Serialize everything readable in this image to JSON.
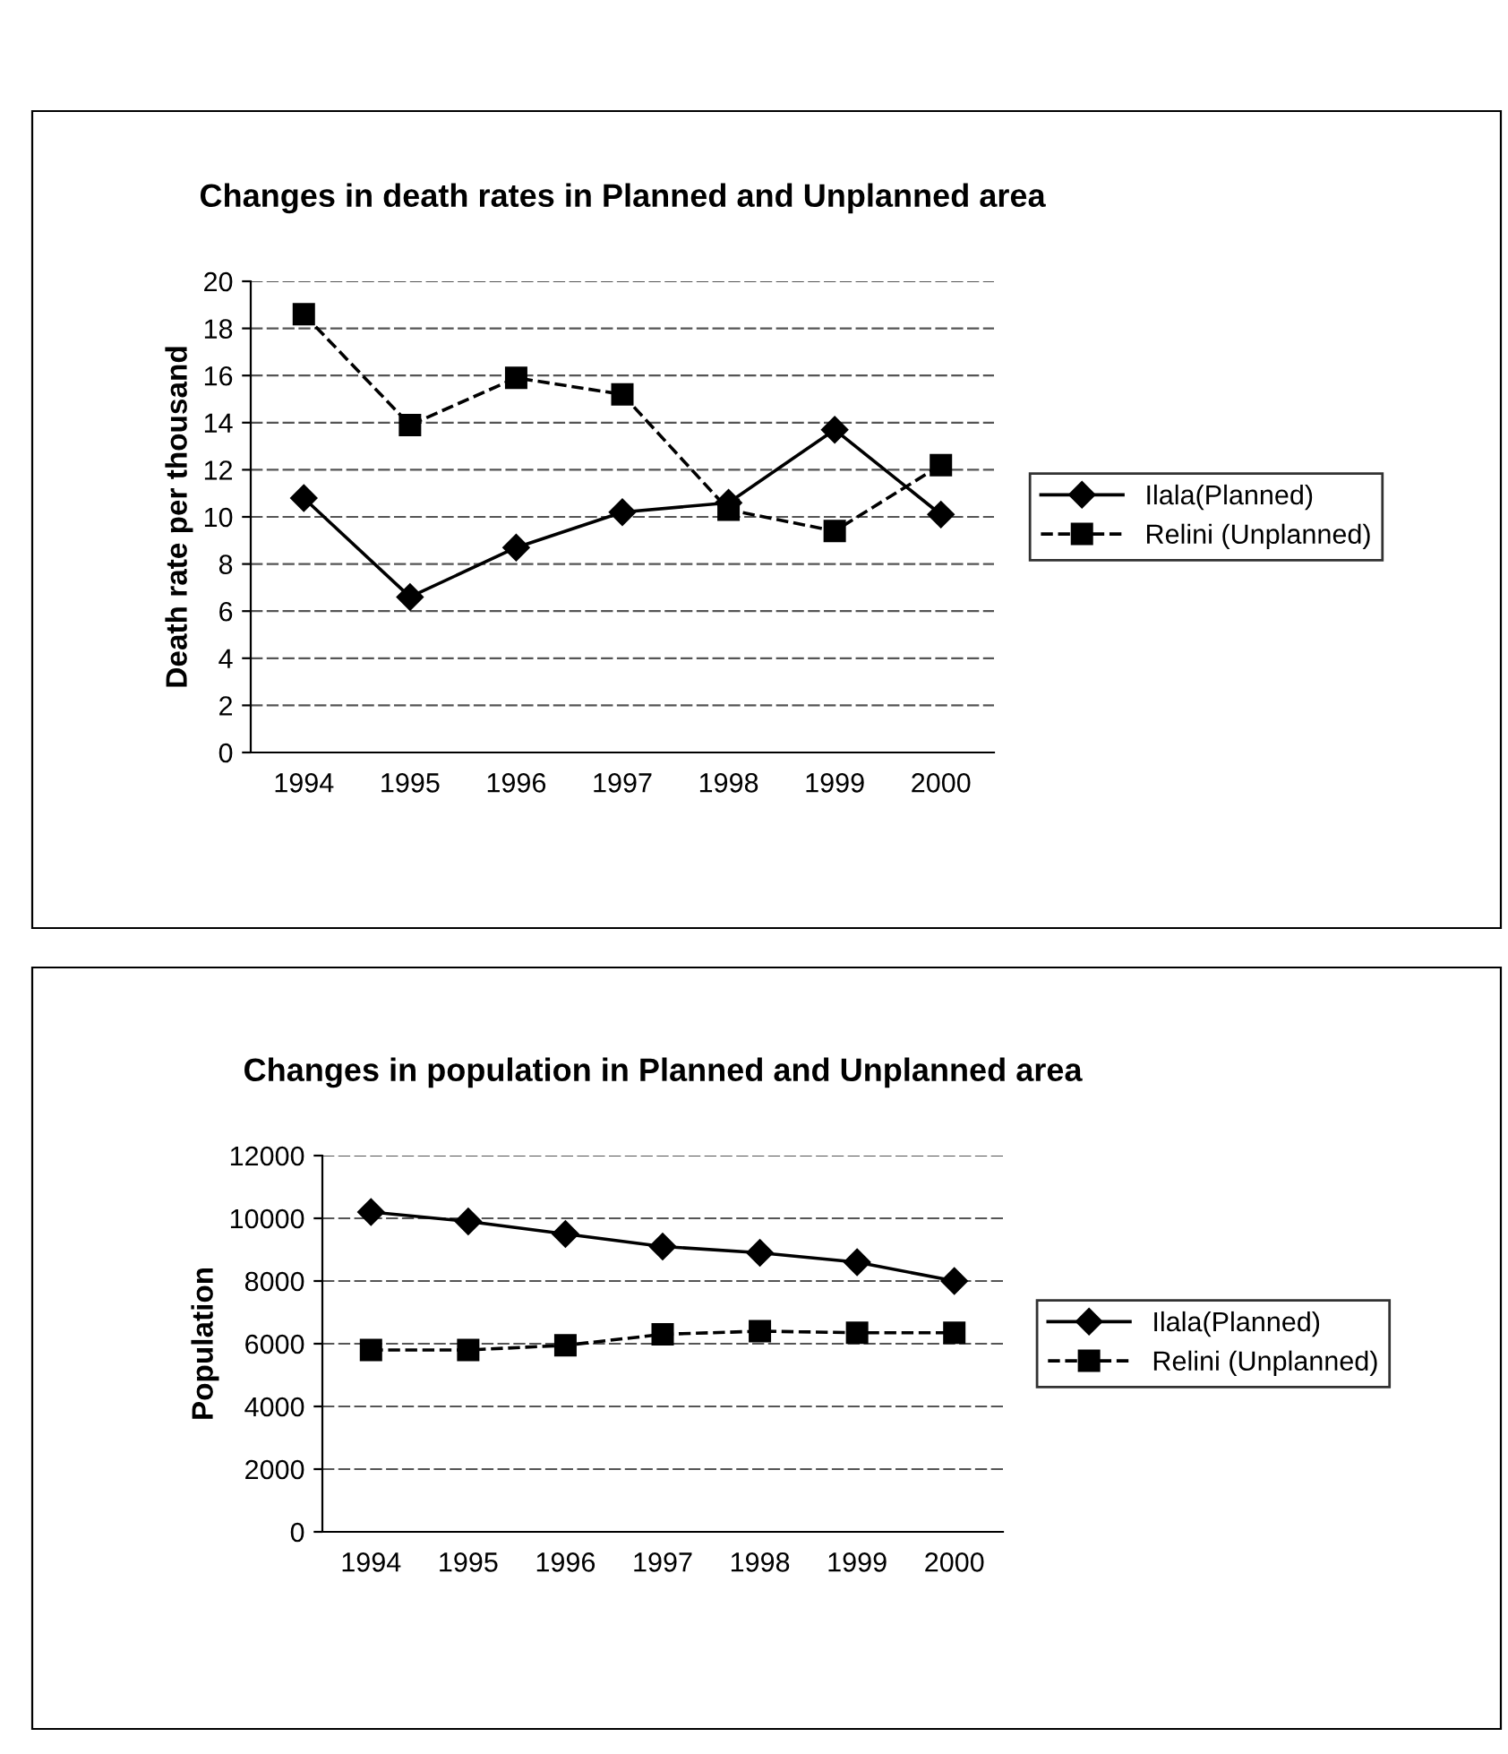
{
  "chart_data": [
    {
      "type": "line",
      "title": "Changes in death rates in Planned and Unplanned area",
      "ylabel": "Death rate per thousand",
      "categories": [
        "1994",
        "1995",
        "1996",
        "1997",
        "1998",
        "1999",
        "2000"
      ],
      "series": [
        {
          "name": "Ilala(Planned)",
          "color": "#000000",
          "marker": "diamond",
          "line_style": "solid",
          "values": [
            10.8,
            6.6,
            8.7,
            10.2,
            10.6,
            13.7,
            10.1
          ]
        },
        {
          "name": "Relini (Unplanned)",
          "color": "#000000",
          "marker": "square",
          "line_style": "dashed",
          "values": [
            18.6,
            13.9,
            15.9,
            15.2,
            10.3,
            9.4,
            12.2
          ]
        }
      ],
      "ylim": [
        0,
        20
      ],
      "yticks": [
        0,
        2,
        4,
        6,
        8,
        10,
        12,
        14,
        16,
        18,
        20
      ],
      "grid": "y",
      "legend": "right"
    },
    {
      "type": "line",
      "title": "Changes in population in Planned and Unplanned area",
      "ylabel": "Population",
      "categories": [
        "1994",
        "1995",
        "1996",
        "1997",
        "1998",
        "1999",
        "2000"
      ],
      "series": [
        {
          "name": "Ilala(Planned)",
          "color": "#000000",
          "marker": "diamond",
          "line_style": "solid",
          "values": [
            10200,
            9900,
            9500,
            9100,
            8900,
            8600,
            8000
          ]
        },
        {
          "name": "Relini (Unplanned)",
          "color": "#000000",
          "marker": "square",
          "line_style": "dashed",
          "values": [
            5800,
            5800,
            5950,
            6300,
            6400,
            6350,
            6350
          ]
        }
      ],
      "ylim": [
        0,
        12000
      ],
      "yticks": [
        0,
        2000,
        4000,
        6000,
        8000,
        10000,
        12000
      ],
      "grid": "y",
      "legend": "right"
    }
  ]
}
